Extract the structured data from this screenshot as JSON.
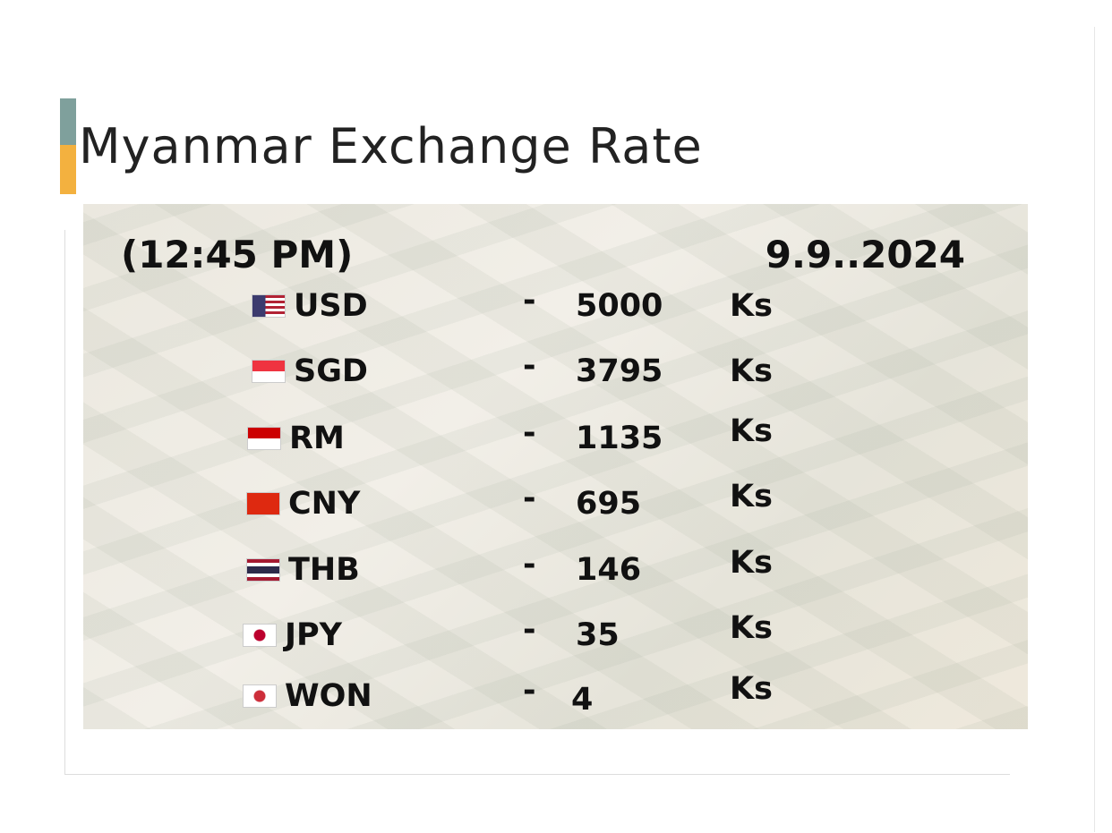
{
  "header": {
    "title": "Myanmar Exchange Rate"
  },
  "card": {
    "time": "(12:45 PM)",
    "date": "9.9..2024",
    "rows": [
      {
        "currency": "USD",
        "separator": "-",
        "rate": 5000,
        "unit": "Ks"
      },
      {
        "currency": "SGD",
        "separator": "-",
        "rate": 3795,
        "unit": "Ks"
      },
      {
        "currency": "RM",
        "separator": "-",
        "rate": 1135,
        "unit": "Ks"
      },
      {
        "currency": "CNY",
        "separator": "-",
        "rate": 695,
        "unit": "Ks"
      },
      {
        "currency": "THB",
        "separator": "-",
        "rate": 146,
        "unit": "Ks"
      },
      {
        "currency": "JPY",
        "separator": "-",
        "rate": 35,
        "unit": "Ks"
      },
      {
        "currency": "WON",
        "separator": "-",
        "rate": 4,
        "unit": "Ks"
      }
    ]
  }
}
